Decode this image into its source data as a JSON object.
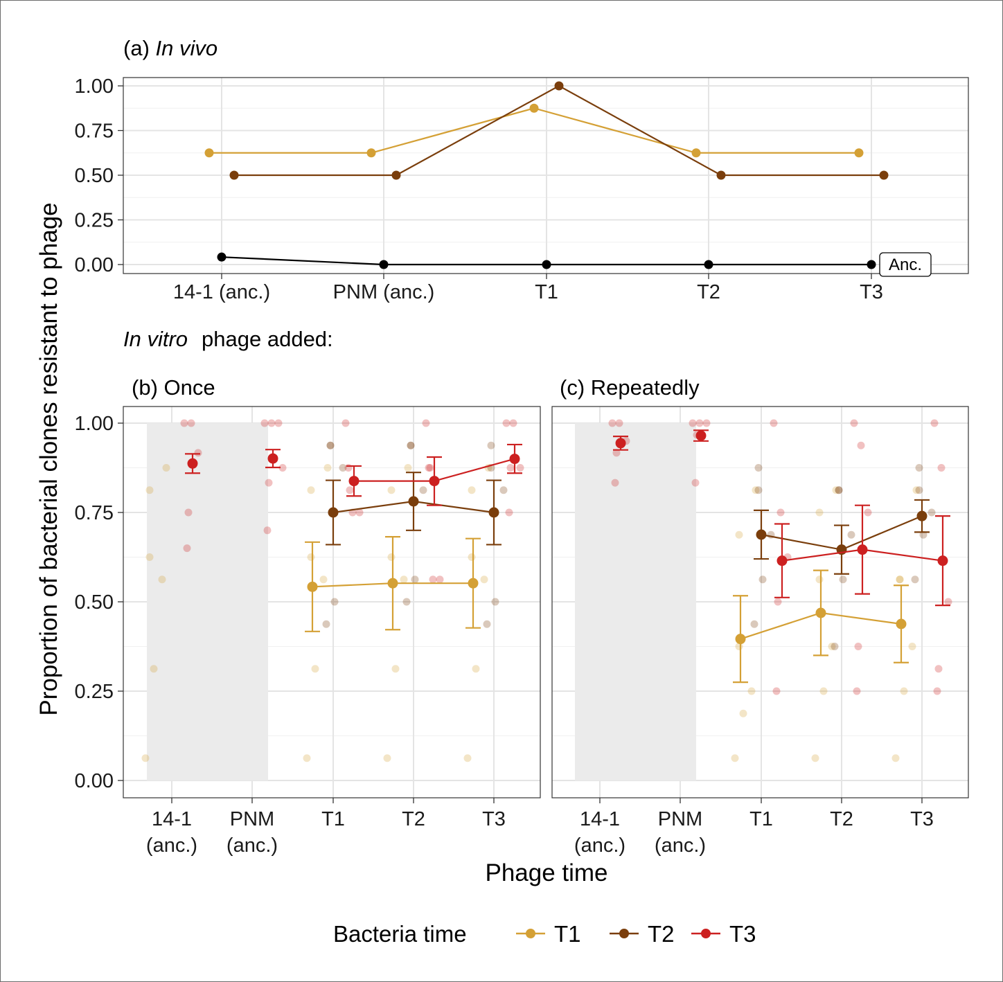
{
  "figure": {
    "y_axis_title": "Proportion of bacterial clones resistant to phage",
    "x_axis_title": "Phage time",
    "subheading_italic": "In vitro",
    "subheading_rest": "phage added:",
    "legend": {
      "title": "Bacteria time",
      "items": [
        {
          "label": "T1",
          "color": "#D4A035"
        },
        {
          "label": "T2",
          "color": "#7A3E0C"
        },
        {
          "label": "T3",
          "color": "#CC2020"
        }
      ]
    }
  },
  "panel_a": {
    "title_prefix": "(a) ",
    "title_italic": "In vivo",
    "annotation": "Anc.",
    "y_ticks": [
      "0.00",
      "0.25",
      "0.50",
      "0.75",
      "1.00"
    ]
  },
  "panel_b": {
    "title": "(b) Once",
    "x_tick_lines": [
      [
        "14-1",
        "(anc.)"
      ],
      [
        "PNM",
        "(anc.)"
      ],
      [
        "T1"
      ],
      [
        "T2"
      ],
      [
        "T3"
      ]
    ],
    "y_ticks": [
      "0.00",
      "0.25",
      "0.50",
      "0.75",
      "1.00"
    ]
  },
  "panel_c": {
    "title": "(c) Repeatedly",
    "x_tick_lines": [
      [
        "14-1",
        "(anc.)"
      ],
      [
        "PNM",
        "(anc.)"
      ],
      [
        "T1"
      ],
      [
        "T2"
      ],
      [
        "T3"
      ]
    ]
  },
  "chart_data": [
    {
      "type": "line",
      "panel": "a",
      "title": "(a) In vivo",
      "categories": [
        "14-1 (anc.)",
        "PNM (anc.)",
        "T1",
        "T2",
        "T3"
      ],
      "ylim": [
        0,
        1
      ],
      "ylabel": "Proportion of bacterial clones resistant to phage",
      "grid": true,
      "series": [
        {
          "name": "T1",
          "color": "#D4A035",
          "values": [
            0.625,
            0.625,
            0.875,
            0.625,
            0.625
          ]
        },
        {
          "name": "T2",
          "color": "#7A3E0C",
          "values": [
            0.5,
            0.5,
            1.0,
            0.5,
            0.5
          ]
        },
        {
          "name": "Anc.",
          "color": "#000000",
          "values": [
            0.042,
            0.0,
            0.0,
            0.0,
            0.0
          ]
        }
      ]
    },
    {
      "type": "scatter",
      "panel": "b",
      "title": "(b) Once",
      "categories": [
        "14-1 (anc.)",
        "PNM (anc.)",
        "T1",
        "T2",
        "T3"
      ],
      "xlabel": "Phage time",
      "ylim": [
        0,
        1
      ],
      "shaded_categories": [
        "14-1 (anc.)",
        "PNM (anc.)"
      ],
      "series": [
        {
          "name": "T1",
          "color": "#D4A035",
          "mean": [
            null,
            null,
            0.542,
            0.552,
            0.552
          ],
          "lower": [
            null,
            null,
            0.417,
            0.422,
            0.427
          ],
          "upper": [
            null,
            null,
            0.667,
            0.682,
            0.677
          ],
          "points": [
            [
              0.0625,
              0.3125,
              0.5625,
              0.625,
              0.8125,
              0.875
            ],
            [],
            [
              0.0625,
              0.3125,
              0.5625,
              0.625,
              0.8125,
              0.875
            ],
            [
              0.0625,
              0.3125,
              0.5625,
              0.625,
              0.8125,
              0.875
            ],
            [
              0.0625,
              0.3125,
              0.5625,
              0.625,
              0.8125,
              0.875
            ]
          ]
        },
        {
          "name": "T2",
          "color": "#7A3E0C",
          "mean": [
            null,
            null,
            0.75,
            0.781,
            0.75
          ],
          "lower": [
            null,
            null,
            0.66,
            0.7,
            0.66
          ],
          "upper": [
            null,
            null,
            0.84,
            0.862,
            0.84
          ],
          "points": [
            [],
            [],
            [
              0.4375,
              0.5,
              0.875,
              0.9375,
              0.9375
            ],
            [
              0.5,
              0.5625,
              0.8125,
              0.9375,
              0.9375
            ],
            [
              0.4375,
              0.5,
              0.8125,
              0.875,
              0.9375
            ]
          ]
        },
        {
          "name": "T3",
          "color": "#CC2020",
          "mean": [
            0.887,
            0.901,
            0.838,
            0.838,
            0.9
          ],
          "lower": [
            0.86,
            0.876,
            0.796,
            0.77,
            0.86
          ],
          "upper": [
            0.914,
            0.926,
            0.88,
            0.905,
            0.94
          ],
          "points": [
            [
              1.0,
              1.0,
              0.917,
              0.75,
              0.65
            ],
            [
              1.0,
              1.0,
              1.0,
              0.833,
              0.7,
              0.875
            ],
            [
              1.0,
              0.75,
              0.75,
              0.8125,
              0.875
            ],
            [
              1.0,
              0.5625,
              0.5625,
              0.875,
              0.875
            ],
            [
              1.0,
              1.0,
              0.875,
              0.875,
              0.75
            ]
          ]
        }
      ]
    },
    {
      "type": "scatter",
      "panel": "c",
      "title": "(c) Repeatedly",
      "categories": [
        "14-1 (anc.)",
        "PNM (anc.)",
        "T1",
        "T2",
        "T3"
      ],
      "xlabel": "Phage time",
      "ylim": [
        0,
        1
      ],
      "shaded_categories": [
        "14-1 (anc.)",
        "PNM (anc.)"
      ],
      "series": [
        {
          "name": "T1",
          "color": "#D4A035",
          "mean": [
            null,
            null,
            0.396,
            0.469,
            0.438
          ],
          "lower": [
            null,
            null,
            0.275,
            0.35,
            0.33
          ],
          "upper": [
            null,
            null,
            0.517,
            0.588,
            0.546
          ],
          "points": [
            [],
            [],
            [
              0.0625,
              0.1875,
              0.25,
              0.375,
              0.6875,
              0.8125
            ],
            [
              0.0625,
              0.25,
              0.375,
              0.5625,
              0.75,
              0.8125
            ],
            [
              0.0625,
              0.25,
              0.375,
              0.5625,
              0.5625,
              0.8125
            ]
          ]
        },
        {
          "name": "T2",
          "color": "#7A3E0C",
          "mean": [
            null,
            null,
            0.688,
            0.646,
            0.74
          ],
          "lower": [
            null,
            null,
            0.62,
            0.578,
            0.695
          ],
          "upper": [
            null,
            null,
            0.756,
            0.714,
            0.785
          ],
          "points": [
            [],
            [],
            [
              0.4375,
              0.5625,
              0.6875,
              0.8125,
              0.875
            ],
            [
              0.375,
              0.5625,
              0.6875,
              0.8125,
              0.8125
            ],
            [
              0.5625,
              0.6875,
              0.75,
              0.8125,
              0.875
            ]
          ]
        },
        {
          "name": "T3",
          "color": "#CC2020",
          "mean": [
            0.944,
            0.965,
            0.615,
            0.646,
            0.615
          ],
          "lower": [
            0.925,
            0.95,
            0.512,
            0.522,
            0.49
          ],
          "upper": [
            0.963,
            0.98,
            0.718,
            0.77,
            0.74
          ],
          "points": [
            [
              1.0,
              1.0,
              0.95,
              0.917,
              0.833
            ],
            [
              1.0,
              1.0,
              1.0,
              0.967,
              0.833
            ],
            [
              1.0,
              0.75,
              0.625,
              0.5,
              0.25
            ],
            [
              1.0,
              0.9375,
              0.75,
              0.375,
              0.25
            ],
            [
              1.0,
              0.875,
              0.5,
              0.3125,
              0.25
            ]
          ]
        }
      ]
    }
  ]
}
